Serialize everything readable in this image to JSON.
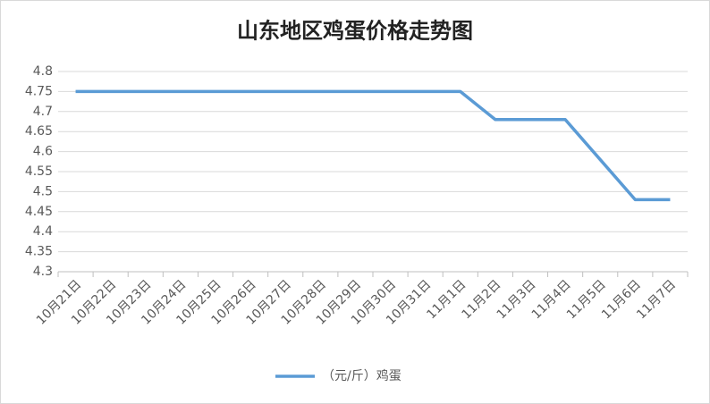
{
  "chart_data": {
    "type": "line",
    "title": "山东地区鸡蛋价格走势图",
    "categories": [
      "10月21日",
      "10月22日",
      "10月23日",
      "10月24日",
      "10月25日",
      "10月26日",
      "10月27日",
      "10月28日",
      "10月29日",
      "10月30日",
      "10月31日",
      "11月1日",
      "11月2日",
      "11月3日",
      "11月4日",
      "11月5日",
      "11月6日",
      "11月7日"
    ],
    "series": [
      {
        "name": "（元/斤）鸡蛋",
        "color": "#5b9bd5",
        "values": [
          4.75,
          4.75,
          4.75,
          4.75,
          4.75,
          4.75,
          4.75,
          4.75,
          4.75,
          4.75,
          4.75,
          4.75,
          4.68,
          4.68,
          4.68,
          4.58,
          4.48,
          4.48
        ]
      }
    ],
    "ylim": [
      4.3,
      4.8
    ],
    "yticks": [
      4.3,
      4.35,
      4.4,
      4.45,
      4.5,
      4.55,
      4.6,
      4.65,
      4.7,
      4.75,
      4.8
    ],
    "grid": true,
    "legend": "bottom"
  }
}
